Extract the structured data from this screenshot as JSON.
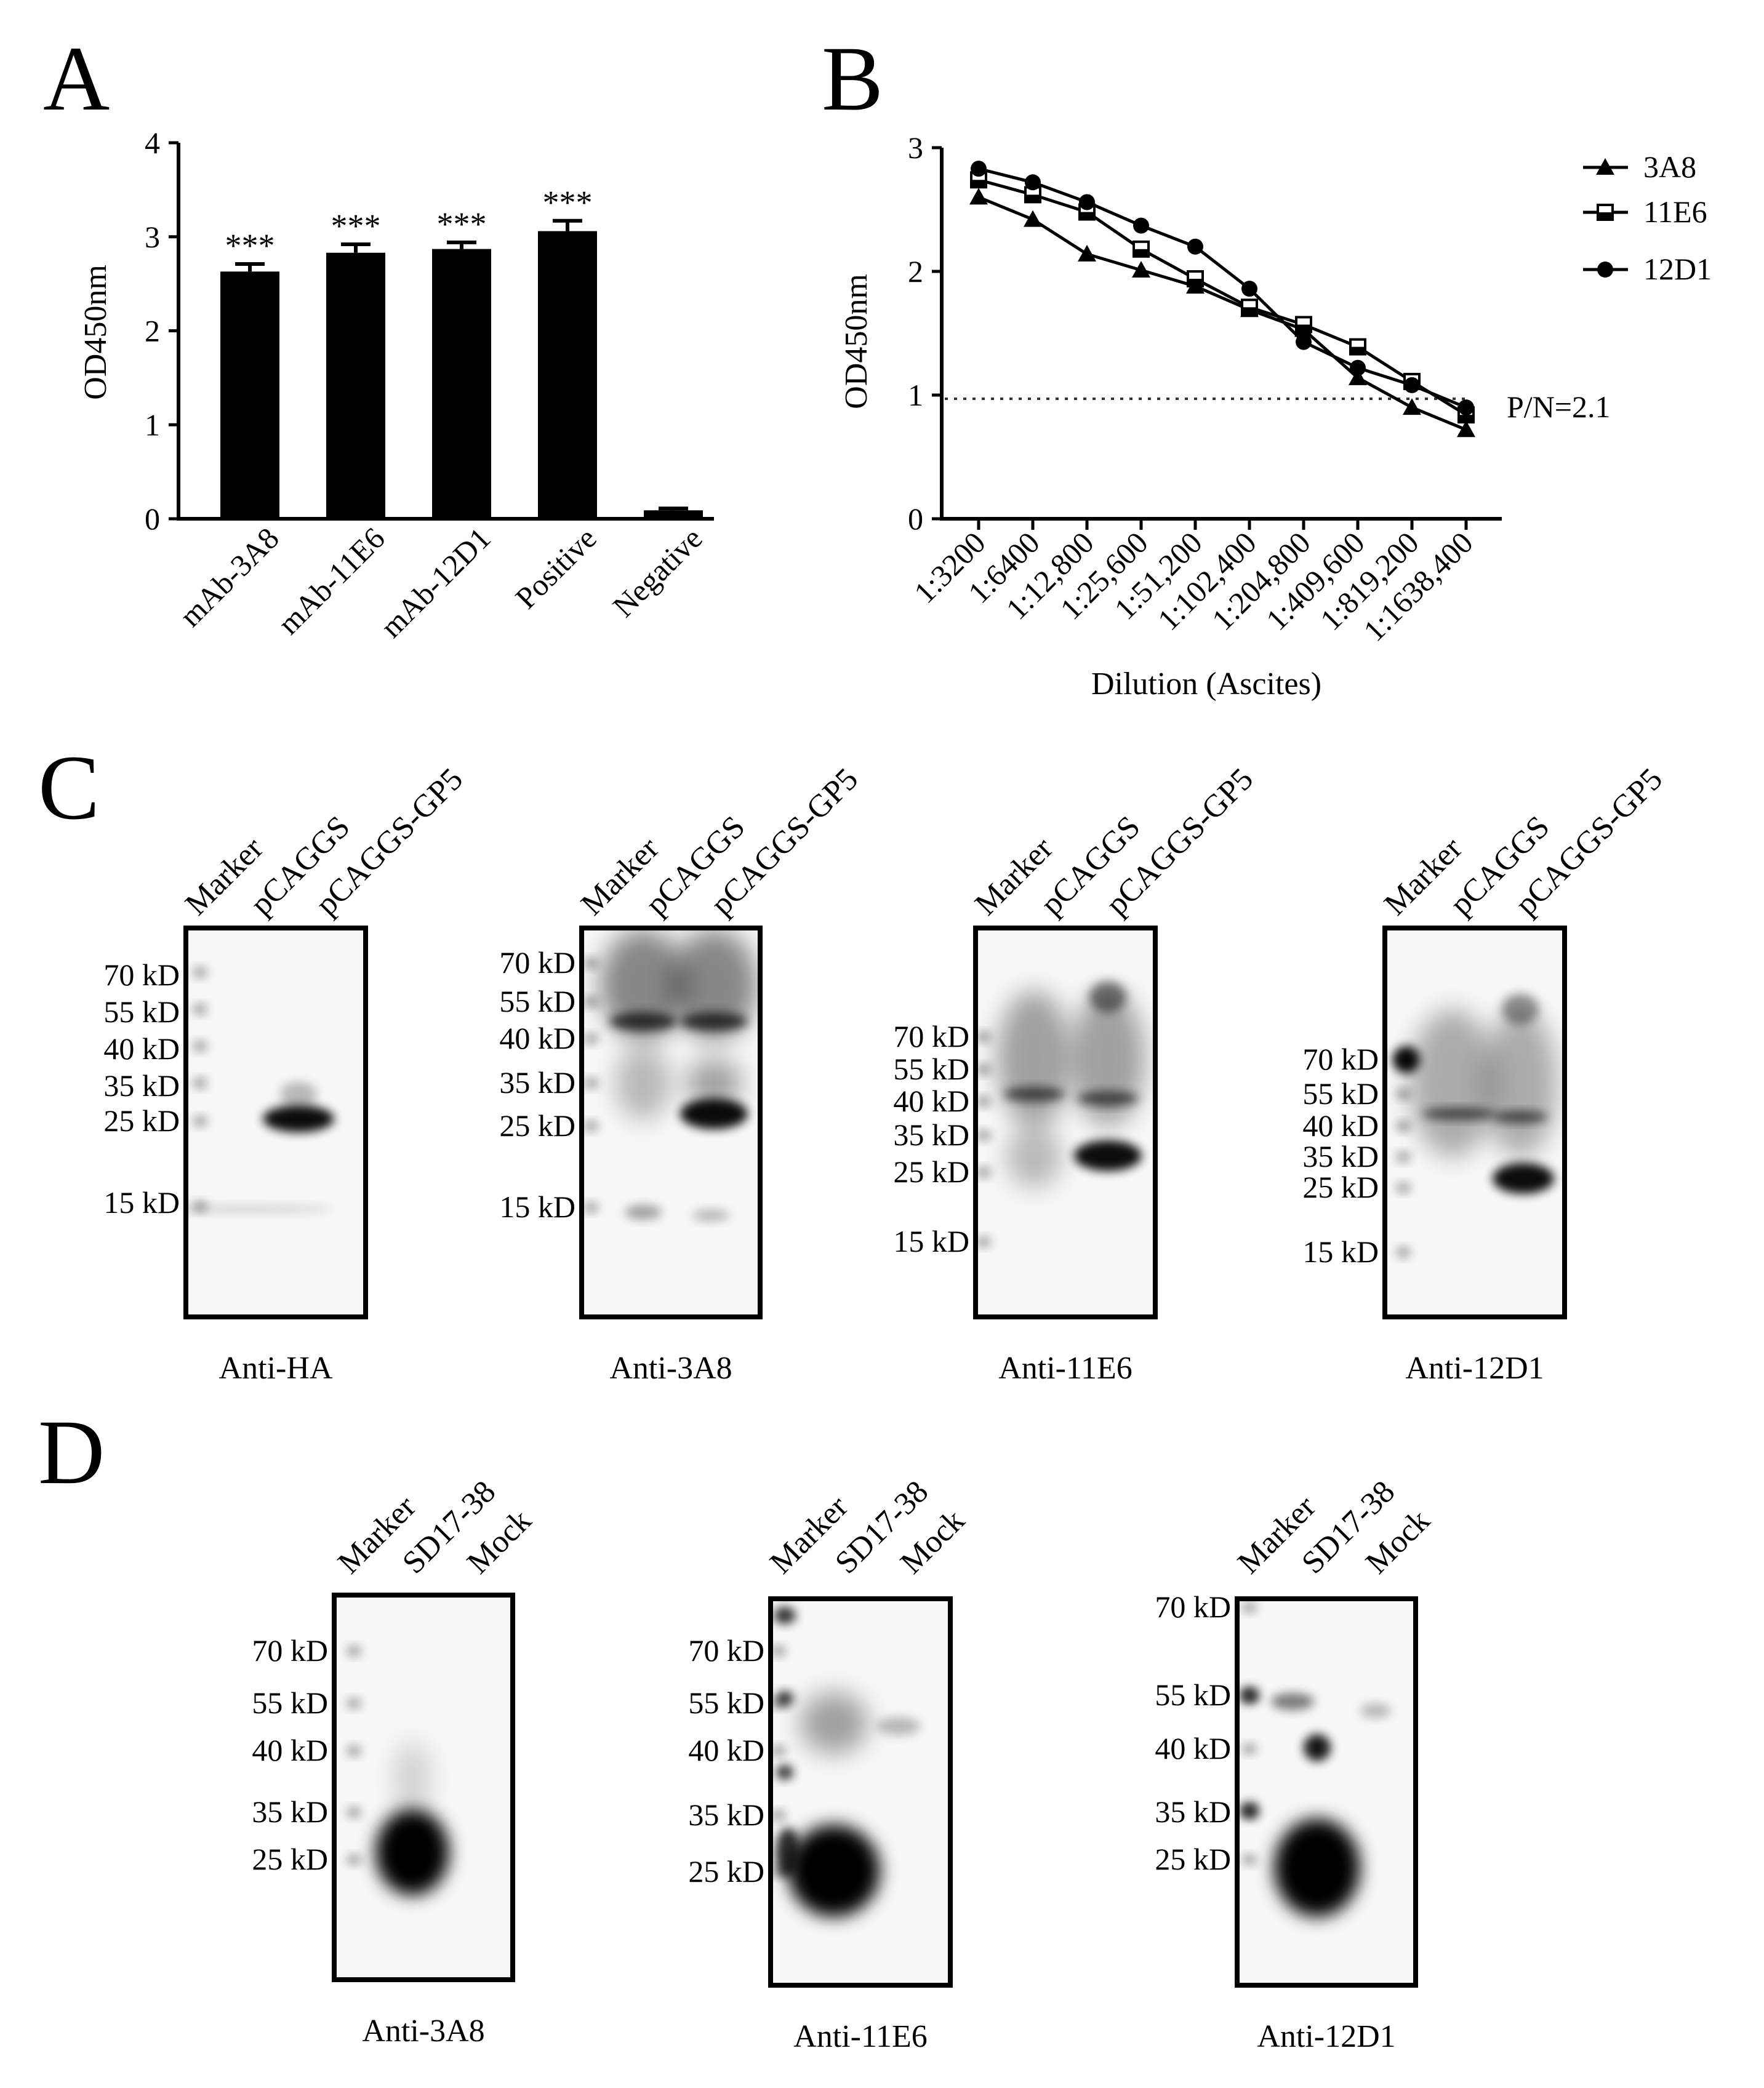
{
  "panels": {
    "a": "A",
    "b": "B",
    "c": "C",
    "d": "D"
  },
  "chart_data": [
    {
      "type": "bar",
      "panel": "A",
      "categories": [
        "mAb-3A8",
        "mAb-11E6",
        "mAb-12D1",
        "Positive",
        "Negative"
      ],
      "values": [
        2.63,
        2.83,
        2.87,
        3.06,
        0.09
      ],
      "errors": [
        0.08,
        0.09,
        0.07,
        0.11,
        0.02
      ],
      "annotations": [
        "***",
        "***",
        "***",
        "***",
        ""
      ],
      "ylabel": "OD450nm",
      "xlabel": "",
      "ylim": [
        0,
        4
      ],
      "yticks": [
        "0",
        "1",
        "2",
        "3",
        "4"
      ],
      "bar_color": "#000000"
    },
    {
      "type": "line",
      "panel": "B",
      "categories": [
        "1:3200",
        "1:6400",
        "1:12,800",
        "1:25,600",
        "1:51,200",
        "1:102,400",
        "1:204,800",
        "1:409,600",
        "1:819,200",
        "1:1638,400"
      ],
      "series": [
        {
          "name": "3A8",
          "marker": "triangle",
          "values": [
            2.6,
            2.42,
            2.14,
            2.01,
            1.88,
            1.69,
            1.53,
            1.14,
            0.9,
            0.72
          ]
        },
        {
          "name": "11E6",
          "marker": "half-square",
          "values": [
            2.74,
            2.62,
            2.48,
            2.18,
            1.94,
            1.71,
            1.57,
            1.39,
            1.11,
            0.84
          ]
        },
        {
          "name": "12D1",
          "marker": "circle",
          "values": [
            2.83,
            2.72,
            2.56,
            2.37,
            2.2,
            1.86,
            1.43,
            1.22,
            1.08,
            0.9
          ]
        }
      ],
      "threshold": {
        "value": 0.97,
        "label": "P/N=2.1"
      },
      "ylabel": "OD450nm",
      "xlabel": "Dilution (Ascites)",
      "ylim": [
        0,
        3
      ],
      "yticks": [
        "0",
        "1",
        "2",
        "3"
      ],
      "legend_position": "top-right"
    }
  ],
  "panel_c": {
    "lanes": [
      "Marker",
      "pCAGGS",
      "pCAGGS-GP5"
    ],
    "blots": [
      {
        "label": "Anti-HA",
        "markers": [
          "70 kD",
          "55 kD",
          "40 kD",
          "35 kD",
          "25 kD",
          "15 kD"
        ]
      },
      {
        "label": "Anti-3A8",
        "markers": [
          "70 kD",
          "55 kD",
          "40 kD",
          "35 kD",
          "25 kD",
          "15 kD"
        ]
      },
      {
        "label": "Anti-11E6",
        "markers": [
          "70 kD",
          "55 kD",
          "40 kD",
          "35 kD",
          "25 kD",
          "15 kD"
        ]
      },
      {
        "label": "Anti-12D1",
        "markers": [
          "70 kD",
          "55 kD",
          "40 kD",
          "35 kD",
          "25 kD",
          "15 kD"
        ]
      }
    ]
  },
  "panel_d": {
    "lanes": [
      "Marker",
      "SD17-38",
      "Mock"
    ],
    "blots": [
      {
        "label": "Anti-3A8",
        "markers": [
          "70 kD",
          "55 kD",
          "40 kD",
          "35 kD",
          "25 kD"
        ]
      },
      {
        "label": "Anti-11E6",
        "markers": [
          "70 kD",
          "55 kD",
          "40 kD",
          "35 kD",
          "25 kD"
        ]
      },
      {
        "label": "Anti-12D1",
        "markers": [
          "70 kD",
          "55 kD",
          "40 kD",
          "35 kD",
          "25 kD"
        ]
      }
    ]
  }
}
